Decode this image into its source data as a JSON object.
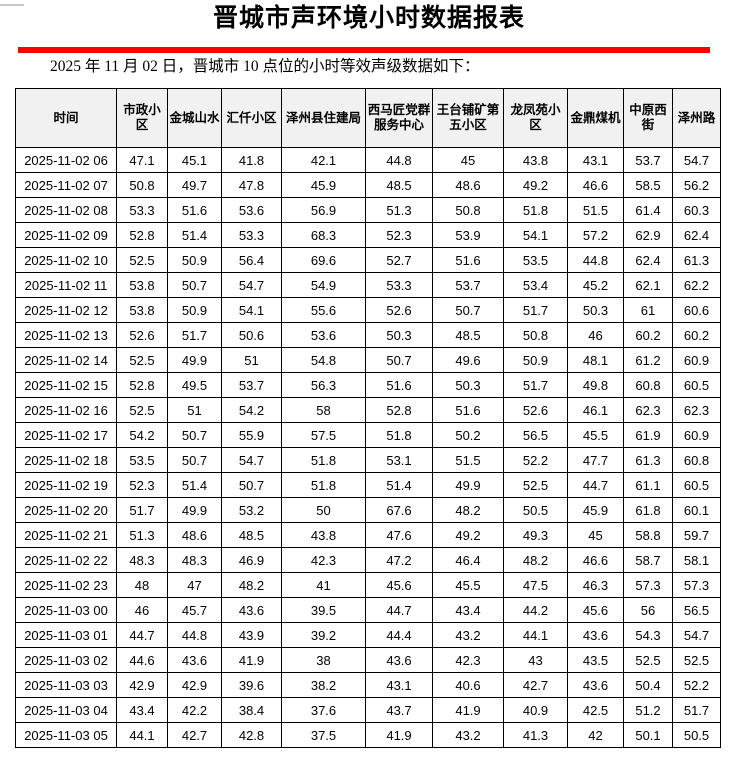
{
  "page": {
    "title": "晋城市声环境小时数据报表",
    "subtitle": "2025 年 11 月 02 日，晋城市 10 点位的小时等效声级数据如下：",
    "accent_color": "#ff0000",
    "header_bg_color": "#f1f1f1",
    "border_color": "#000000"
  },
  "table": {
    "columns": [
      "时间",
      "市政小区",
      "金城山水",
      "汇仟小区",
      "泽州县住建局",
      "西马匠党群服务中心",
      "王台铺矿第五小区",
      "龙凤苑小区",
      "金鼎煤机",
      "中原西街",
      "泽州路"
    ],
    "rows": [
      [
        "2025-11-02 06",
        "47.1",
        "45.1",
        "41.8",
        "42.1",
        "44.8",
        "45",
        "43.8",
        "43.1",
        "53.7",
        "54.7"
      ],
      [
        "2025-11-02 07",
        "50.8",
        "49.7",
        "47.8",
        "45.9",
        "48.5",
        "48.6",
        "49.2",
        "46.6",
        "58.5",
        "56.2"
      ],
      [
        "2025-11-02 08",
        "53.3",
        "51.6",
        "53.6",
        "56.9",
        "51.3",
        "50.8",
        "51.8",
        "51.5",
        "61.4",
        "60.3"
      ],
      [
        "2025-11-02 09",
        "52.8",
        "51.4",
        "53.3",
        "68.3",
        "52.3",
        "53.9",
        "54.1",
        "57.2",
        "62.9",
        "62.4"
      ],
      [
        "2025-11-02 10",
        "52.5",
        "50.9",
        "56.4",
        "69.6",
        "52.7",
        "51.6",
        "53.5",
        "44.8",
        "62.4",
        "61.3"
      ],
      [
        "2025-11-02 11",
        "53.8",
        "50.7",
        "54.7",
        "54.9",
        "53.3",
        "53.7",
        "53.4",
        "45.2",
        "62.1",
        "62.2"
      ],
      [
        "2025-11-02 12",
        "53.8",
        "50.9",
        "54.1",
        "55.6",
        "52.6",
        "50.7",
        "51.7",
        "50.3",
        "61",
        "60.6"
      ],
      [
        "2025-11-02 13",
        "52.6",
        "51.7",
        "50.6",
        "53.6",
        "50.3",
        "48.5",
        "50.8",
        "46",
        "60.2",
        "60.2"
      ],
      [
        "2025-11-02 14",
        "52.5",
        "49.9",
        "51",
        "54.8",
        "50.7",
        "49.6",
        "50.9",
        "48.1",
        "61.2",
        "60.9"
      ],
      [
        "2025-11-02 15",
        "52.8",
        "49.5",
        "53.7",
        "56.3",
        "51.6",
        "50.3",
        "51.7",
        "49.8",
        "60.8",
        "60.5"
      ],
      [
        "2025-11-02 16",
        "52.5",
        "51",
        "54.2",
        "58",
        "52.8",
        "51.6",
        "52.6",
        "46.1",
        "62.3",
        "62.3"
      ],
      [
        "2025-11-02 17",
        "54.2",
        "50.7",
        "55.9",
        "57.5",
        "51.8",
        "50.2",
        "56.5",
        "45.5",
        "61.9",
        "60.9"
      ],
      [
        "2025-11-02 18",
        "53.5",
        "50.7",
        "54.7",
        "51.8",
        "53.1",
        "51.5",
        "52.2",
        "47.7",
        "61.3",
        "60.8"
      ],
      [
        "2025-11-02 19",
        "52.3",
        "51.4",
        "50.7",
        "51.8",
        "51.4",
        "49.9",
        "52.5",
        "44.7",
        "61.1",
        "60.5"
      ],
      [
        "2025-11-02 20",
        "51.7",
        "49.9",
        "53.2",
        "50",
        "67.6",
        "48.2",
        "50.5",
        "45.9",
        "61.8",
        "60.1"
      ],
      [
        "2025-11-02 21",
        "51.3",
        "48.6",
        "48.5",
        "43.8",
        "47.6",
        "49.2",
        "49.3",
        "45",
        "58.8",
        "59.7"
      ],
      [
        "2025-11-02 22",
        "48.3",
        "48.3",
        "46.9",
        "42.3",
        "47.2",
        "46.4",
        "48.2",
        "46.6",
        "58.7",
        "58.1"
      ],
      [
        "2025-11-02 23",
        "48",
        "47",
        "48.2",
        "41",
        "45.6",
        "45.5",
        "47.5",
        "46.3",
        "57.3",
        "57.3"
      ],
      [
        "2025-11-03 00",
        "46",
        "45.7",
        "43.6",
        "39.5",
        "44.7",
        "43.4",
        "44.2",
        "45.6",
        "56",
        "56.5"
      ],
      [
        "2025-11-03 01",
        "44.7",
        "44.8",
        "43.9",
        "39.2",
        "44.4",
        "43.2",
        "44.1",
        "43.6",
        "54.3",
        "54.7"
      ],
      [
        "2025-11-03 02",
        "44.6",
        "43.6",
        "41.9",
        "38",
        "43.6",
        "42.3",
        "43",
        "43.5",
        "52.5",
        "52.5"
      ],
      [
        "2025-11-03 03",
        "42.9",
        "42.9",
        "39.6",
        "38.2",
        "43.1",
        "40.6",
        "42.7",
        "43.6",
        "50.4",
        "52.2"
      ],
      [
        "2025-11-03 04",
        "43.4",
        "42.2",
        "38.4",
        "37.6",
        "43.7",
        "41.9",
        "40.9",
        "42.5",
        "51.2",
        "51.7"
      ],
      [
        "2025-11-03 05",
        "44.1",
        "42.7",
        "42.8",
        "37.5",
        "41.9",
        "43.2",
        "41.3",
        "42",
        "50.1",
        "50.5"
      ]
    ]
  }
}
